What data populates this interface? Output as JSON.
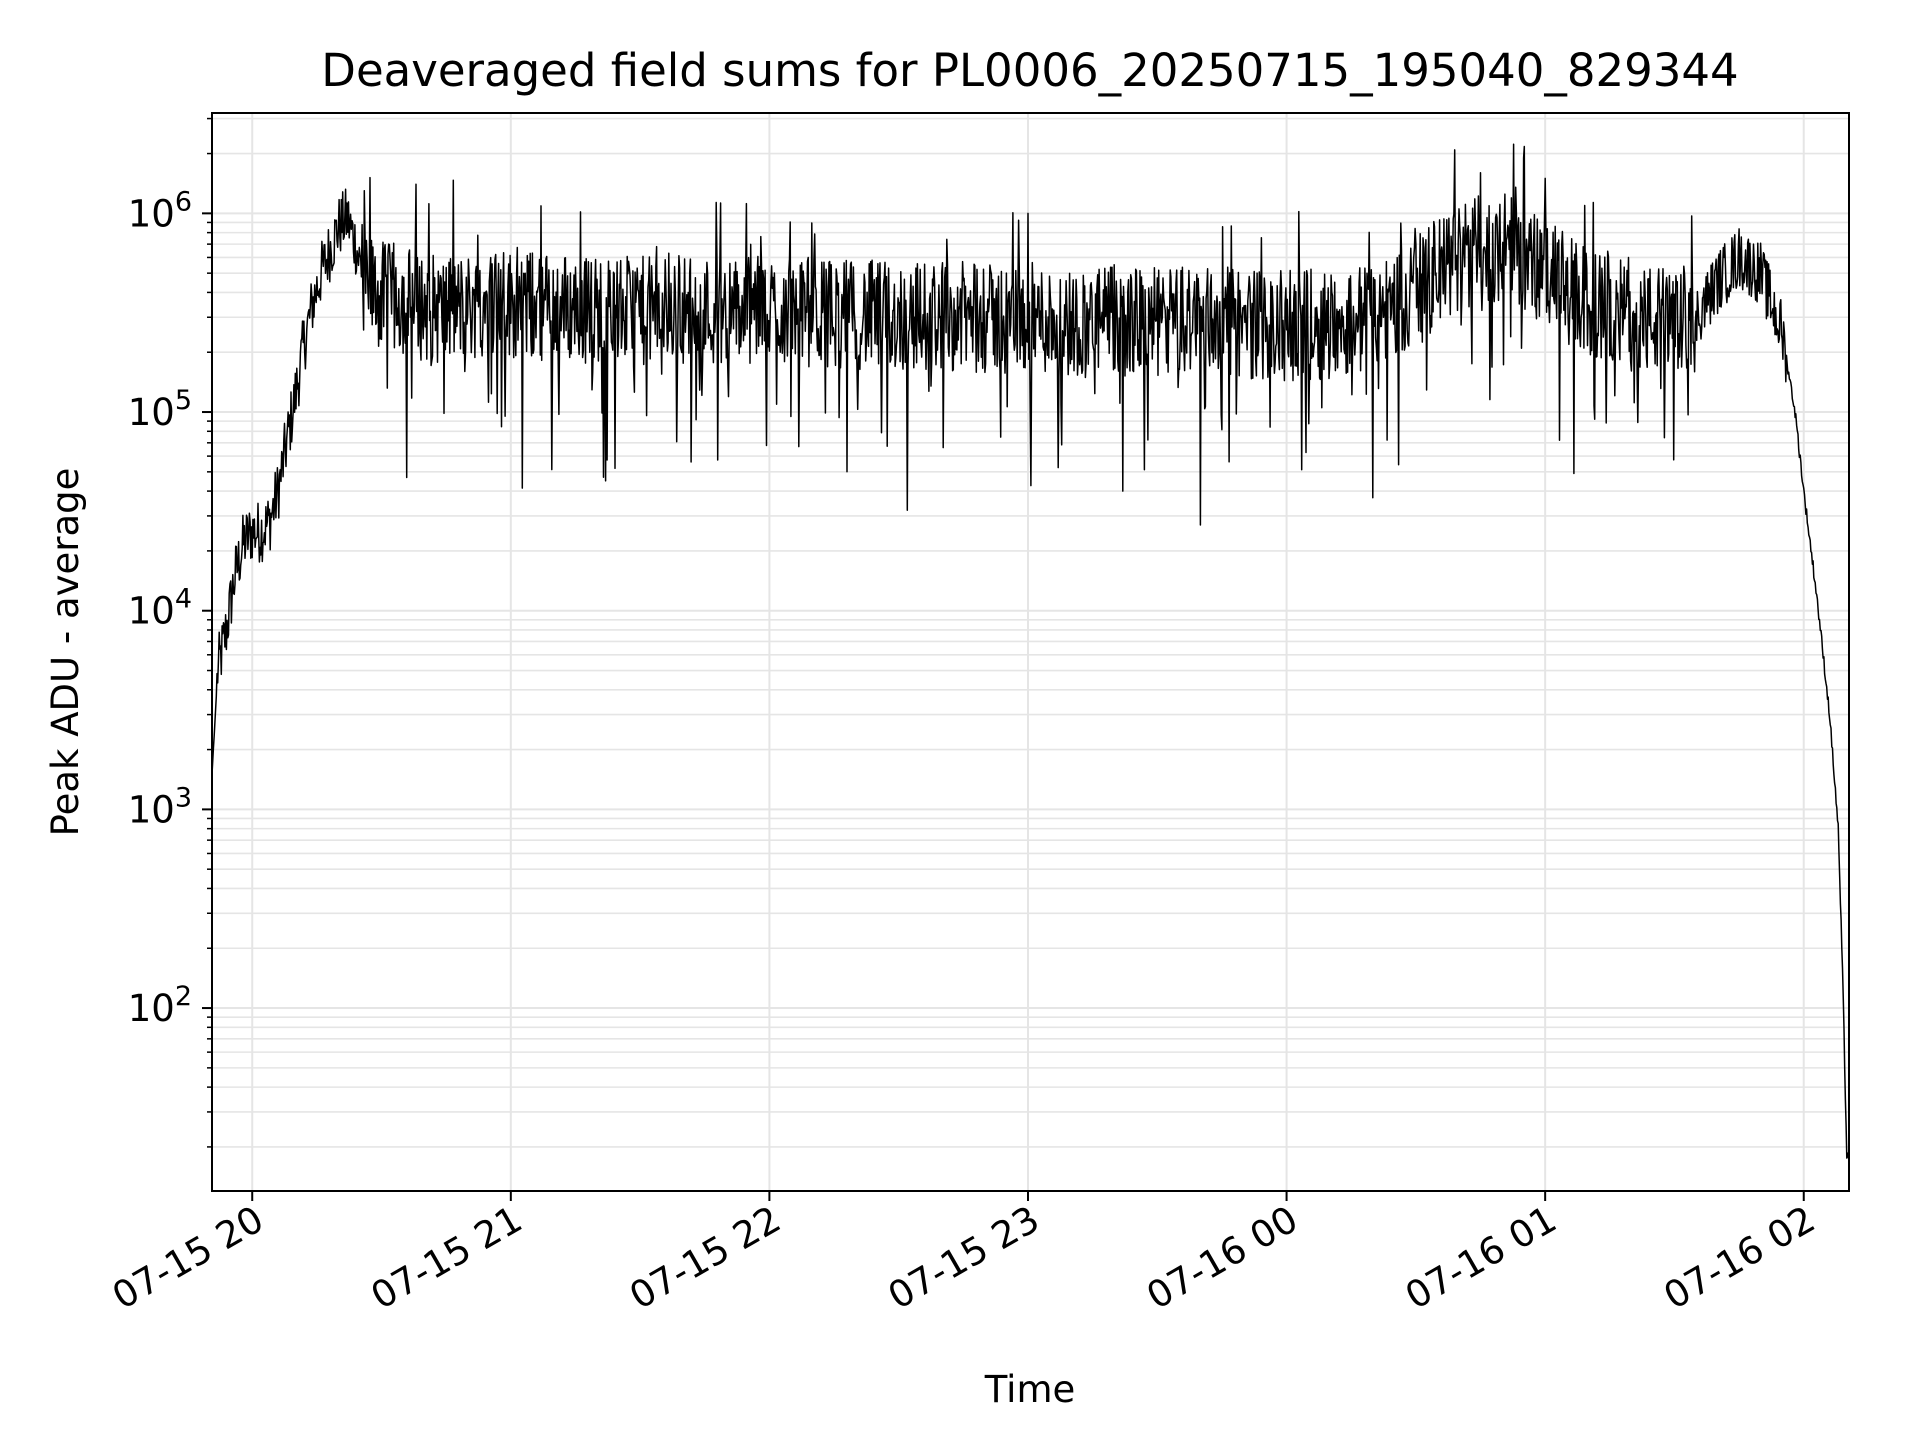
{
  "chart_data": {
    "type": "line",
    "title": "Deaveraged field sums for PL0006_20250715_195040_829344",
    "xlabel": "Time",
    "ylabel": "Peak ADU - average",
    "yscale": "log",
    "xlim": [
      "07-15 19:50:40",
      "07-16 02:10:30"
    ],
    "ylim": [
      12,
      3200000
    ],
    "grid": "major and minor",
    "line_color": "#000000",
    "grid_color": "#e5e5e5",
    "x_ticks": [
      "07-15 20",
      "07-15 21",
      "07-15 22",
      "07-15 23",
      "07-16 00",
      "07-16 01",
      "07-16 02"
    ],
    "y_ticks": [
      "10^2",
      "10^3",
      "10^4",
      "10^5",
      "10^6"
    ],
    "series": [
      {
        "x": [
          "07-15 19:50:40",
          "07-15 19:52",
          "07-15 19:54",
          "07-15 19:56",
          "07-15 19:58",
          "07-15 20:00",
          "07-15 20:02",
          "07-15 20:04",
          "07-15 20:06",
          "07-15 20:08",
          "07-15 20:10",
          "07-15 20:12",
          "07-15 20:14",
          "07-15 20:16",
          "07-15 20:18",
          "07-15 20:20",
          "07-15 20:22",
          "07-15 20:24",
          "07-15 20:26",
          "07-15 20:28",
          "07-15 20:30",
          "07-15 20:35",
          "07-15 20:40",
          "07-15 20:45",
          "07-15 20:50",
          "07-15 20:55",
          "07-15 21:00",
          "07-15 21:10",
          "07-15 21:20",
          "07-15 21:30",
          "07-15 21:40",
          "07-15 21:50",
          "07-15 22:00",
          "07-15 22:10",
          "07-15 22:20",
          "07-15 22:30",
          "07-15 22:40",
          "07-15 22:50",
          "07-15 23:00",
          "07-15 23:10",
          "07-15 23:20",
          "07-15 23:30",
          "07-15 23:40",
          "07-15 23:50",
          "07-16 00:00",
          "07-16 00:10",
          "07-16 00:20",
          "07-16 00:30",
          "07-16 00:40",
          "07-16 00:50",
          "07-16 01:00",
          "07-16 01:10",
          "07-16 01:20",
          "07-16 01:30",
          "07-16 01:35",
          "07-16 01:40",
          "07-16 01:45",
          "07-16 01:50",
          "07-16 01:55",
          "07-16 01:58",
          "07-16 02:00",
          "07-16 02:03",
          "07-16 02:06",
          "07-16 02:08",
          "07-16 02:09",
          "07-16 02:10"
        ],
        "y": [
          1500,
          5000,
          8000,
          15000,
          22000,
          25000,
          25000,
          28000,
          40000,
          70000,
          120000,
          220000,
          350000,
          500000,
          650000,
          850000,
          950000,
          700000,
          450000,
          400000,
          380000,
          370000,
          340000,
          320000,
          340000,
          360000,
          350000,
          340000,
          330000,
          320000,
          330000,
          320000,
          330000,
          320000,
          310000,
          300000,
          310000,
          290000,
          300000,
          280000,
          290000,
          280000,
          300000,
          280000,
          270000,
          280000,
          300000,
          400000,
          600000,
          700000,
          500000,
          350000,
          300000,
          280000,
          300000,
          450000,
          600000,
          500000,
          250000,
          100000,
          40000,
          12000,
          3000,
          800,
          150,
          18
        ],
        "spikes": [
          {
            "x": "07-15 20:26",
            "y": 1300000
          },
          {
            "x": "07-15 20:38",
            "y": 1400000
          },
          {
            "x": "07-15 21:22",
            "y": 45000
          },
          {
            "x": "07-15 22:05",
            "y": 95000
          },
          {
            "x": "07-15 22:18",
            "y": 50000
          },
          {
            "x": "07-15 22:32",
            "y": 32000
          },
          {
            "x": "07-15 23:00",
            "y": 1000000
          },
          {
            "x": "07-15 23:22",
            "y": 40000
          },
          {
            "x": "07-15 23:40",
            "y": 27000
          },
          {
            "x": "07-16 00:20",
            "y": 37000
          },
          {
            "x": "07-16 00:45",
            "y": 1600000
          },
          {
            "x": "07-16 00:55",
            "y": 1900000
          },
          {
            "x": "07-16 01:00",
            "y": 1500000
          }
        ]
      }
    ]
  }
}
